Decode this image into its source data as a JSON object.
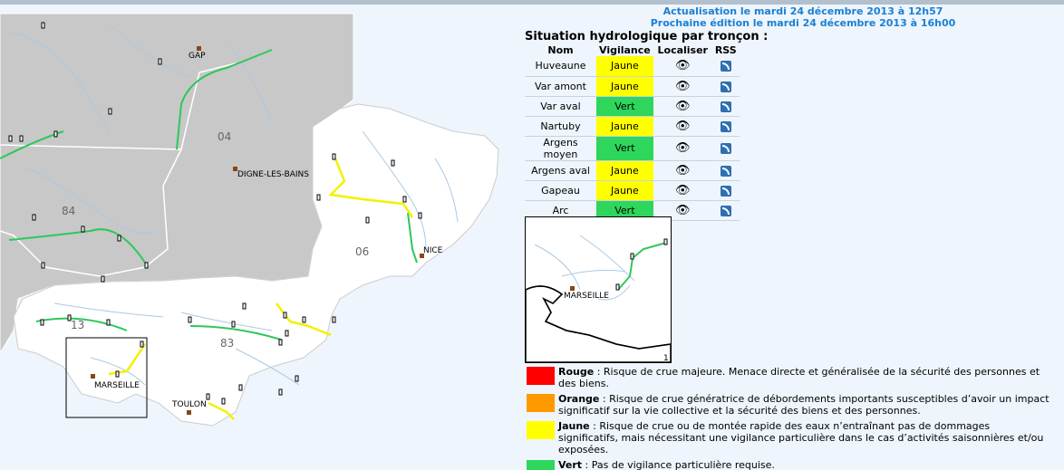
{
  "header": {
    "update_line": "Actualisation le mardi 24 décembre 2013 à 12h57",
    "next_line": "Prochaine édition le mardi 24 décembre 2013 à 16h00"
  },
  "table": {
    "title": "Situation hydrologique par tronçon :",
    "headers": {
      "nom": "Nom",
      "vigilance": "Vigilance",
      "localiser": "Localiser",
      "rss": "RSS"
    },
    "rows": [
      {
        "nom": "Huveaune",
        "vigilance": "Jaune",
        "level": "jaune"
      },
      {
        "nom": "Var amont",
        "vigilance": "Jaune",
        "level": "jaune"
      },
      {
        "nom": "Var aval",
        "vigilance": "Vert",
        "level": "vert"
      },
      {
        "nom": "Nartuby",
        "vigilance": "Jaune",
        "level": "jaune"
      },
      {
        "nom": "Argens moyen",
        "vigilance": "Vert",
        "level": "vert"
      },
      {
        "nom": "Argens aval",
        "vigilance": "Jaune",
        "level": "jaune"
      },
      {
        "nom": "Gapeau",
        "vigilance": "Jaune",
        "level": "jaune"
      },
      {
        "nom": "Arc",
        "vigilance": "Vert",
        "level": "vert"
      }
    ],
    "localiser_icon": "eye-icon",
    "rss_icon": "rss-icon"
  },
  "map": {
    "cities": {
      "gap": "GAP",
      "digne": "DIGNE-LES-BAINS",
      "nice": "NICE",
      "marseille": "MARSEILLE",
      "toulon": "TOULON"
    },
    "departments": {
      "d04": "04",
      "d84": "84",
      "d06": "06",
      "d13": "13",
      "d83": "83"
    }
  },
  "inset": {
    "city": "MARSEILLE",
    "number": "1"
  },
  "legend": [
    {
      "label": "Rouge",
      "text": " : Risque de crue majeure. Menace directe et généralisée de la sécurité des personnes et des biens.",
      "color": "#ff0000"
    },
    {
      "label": "Orange",
      "text": " : Risque de crue génératrice de débordements importants susceptibles d’avoir un impact significatif sur la vie collective et la sécurité des biens et des personnes.",
      "color": "#ff9900"
    },
    {
      "label": "Jaune",
      "text": " : Risque de crue ou de montée rapide des eaux n’entraînant pas de dommages significatifs, mais nécessitant une vigilance particulière dans le cas d’activités saisonnières et/ou exposées.",
      "color": "#ffff00"
    },
    {
      "label": "Vert",
      "text": " : Pas de vigilance particulière requise.",
      "color": "#2ed65c"
    }
  ],
  "colors": {
    "jaune": "#ffff00",
    "vert": "#2ed65c",
    "header_blue": "#1a7fd4",
    "gray_region": "#c8c8c8"
  }
}
